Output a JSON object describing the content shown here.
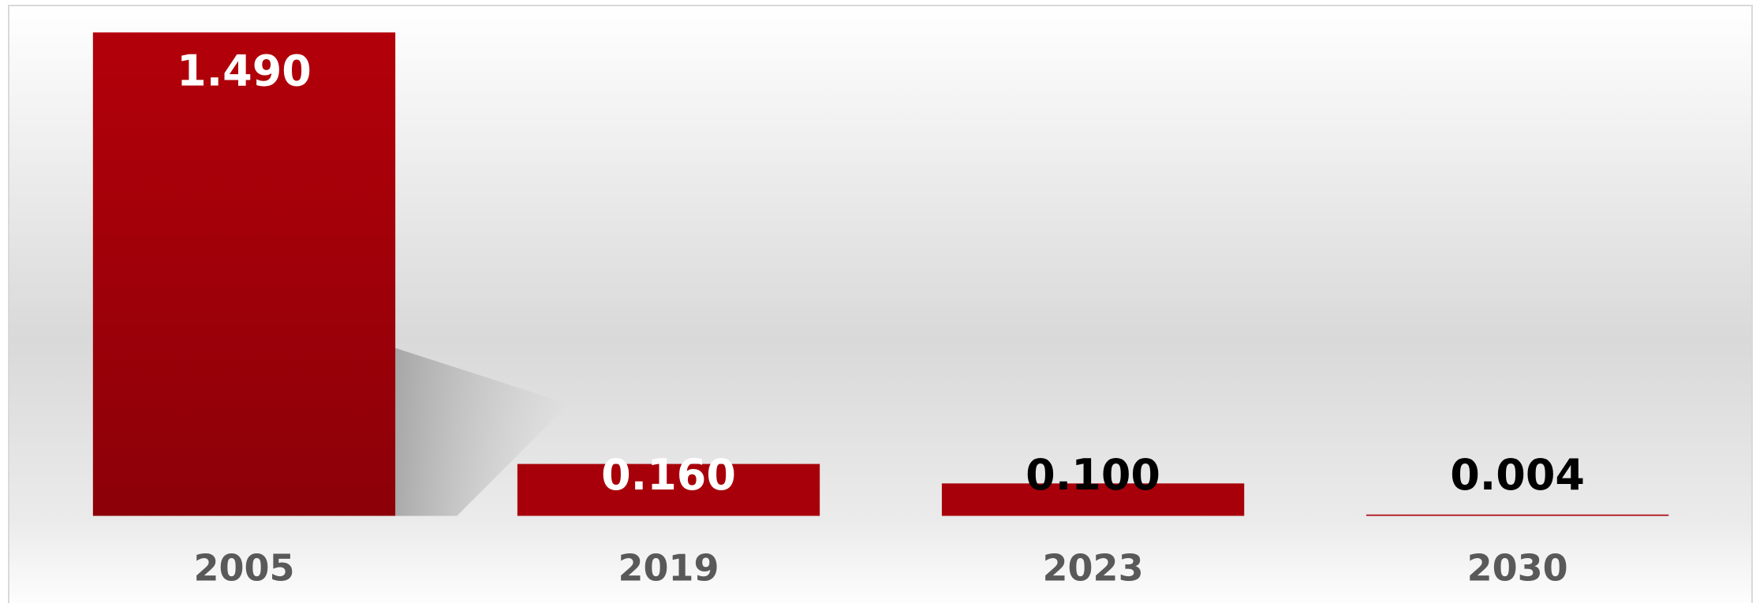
{
  "chart_data": {
    "type": "bar",
    "categories": [
      "2005",
      "2019",
      "2023",
      "2030"
    ],
    "values": [
      1.49,
      0.16,
      0.1,
      0.004
    ],
    "value_labels": [
      "1.490",
      "0.160",
      "0.100",
      "0.004"
    ],
    "color": "#a8000a"
  }
}
